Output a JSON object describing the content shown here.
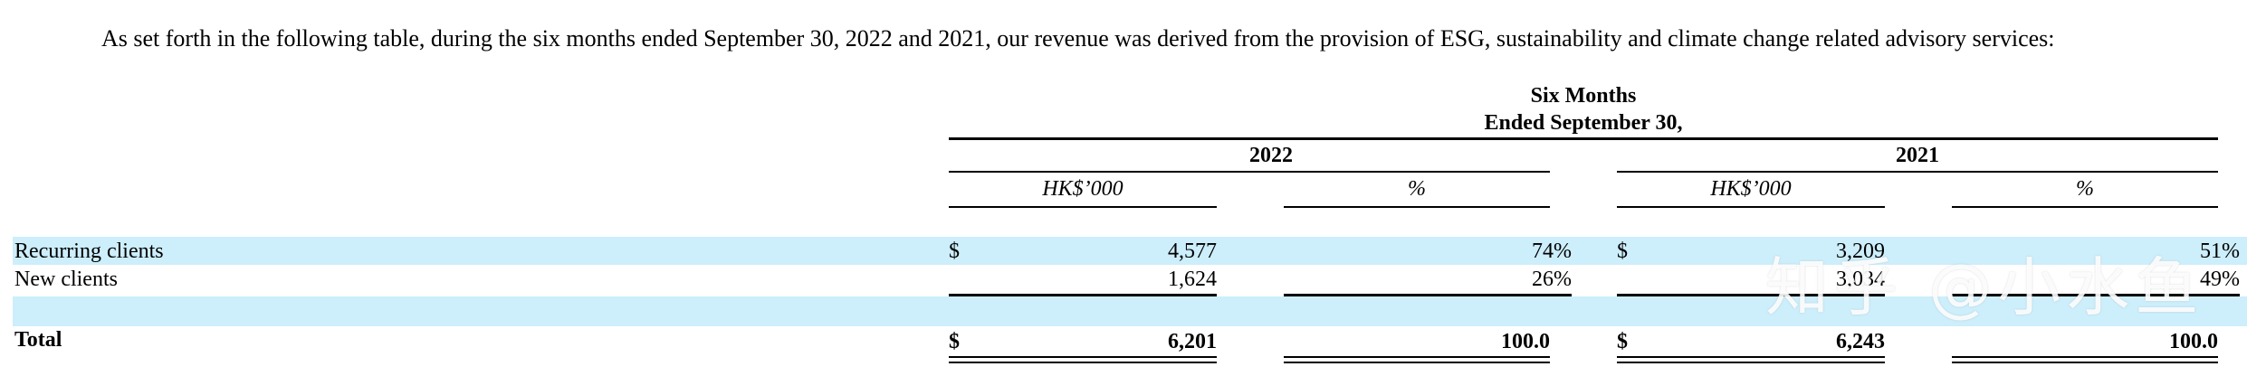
{
  "intro": "As set forth in the following table, during the six months ended September 30, 2022 and 2021, our revenue was derived from the provision of ESG, sustainability and climate change related advisory services:",
  "table": {
    "period_header_line1": "Six Months",
    "period_header_line2": "Ended September 30,",
    "years": [
      "2022",
      "2021"
    ],
    "col_amount": "HK$’000",
    "col_pct": "%",
    "rows": [
      {
        "label": "Recurring clients",
        "cur_2022": "$",
        "amt_2022": "4,577",
        "pct_2022": "74%",
        "cur_2021": "$",
        "amt_2021": "3,209",
        "pct_2021": "51%"
      },
      {
        "label": "New clients",
        "cur_2022": "",
        "amt_2022": "1,624",
        "pct_2022": "26%",
        "cur_2021": "",
        "amt_2021": "3,034",
        "pct_2021": "49%"
      }
    ],
    "total": {
      "label": "Total",
      "cur_2022": "$",
      "amt_2022": "6,201",
      "pct_2022": "100.0",
      "cur_2021": "$",
      "amt_2021": "6,243",
      "pct_2021": "100.0"
    }
  },
  "watermark": "知乎 @小水鱼"
}
